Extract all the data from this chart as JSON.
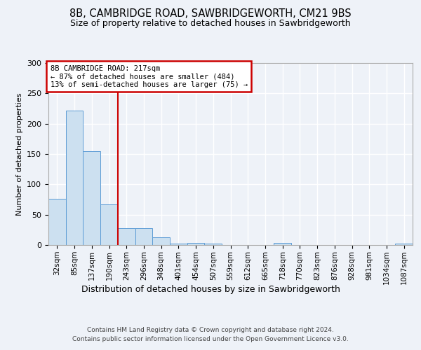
{
  "title1": "8B, CAMBRIDGE ROAD, SAWBRIDGEWORTH, CM21 9BS",
  "title2": "Size of property relative to detached houses in Sawbridgeworth",
  "xlabel": "Distribution of detached houses by size in Sawbridgeworth",
  "ylabel": "Number of detached properties",
  "categories": [
    "32sqm",
    "85sqm",
    "137sqm",
    "190sqm",
    "243sqm",
    "296sqm",
    "348sqm",
    "401sqm",
    "454sqm",
    "507sqm",
    "559sqm",
    "612sqm",
    "665sqm",
    "718sqm",
    "770sqm",
    "823sqm",
    "876sqm",
    "928sqm",
    "981sqm",
    "1034sqm",
    "1087sqm"
  ],
  "values": [
    76,
    221,
    155,
    67,
    28,
    28,
    13,
    2,
    4,
    2,
    0,
    0,
    0,
    3,
    0,
    0,
    0,
    0,
    0,
    0,
    2
  ],
  "bar_color": "#cce0f0",
  "bar_edge_color": "#5b9bd5",
  "annotation_text_line1": "8B CAMBRIDGE ROAD: 217sqm",
  "annotation_text_line2": "← 87% of detached houses are smaller (484)",
  "annotation_text_line3": "13% of semi-detached houses are larger (75) →",
  "annotation_box_color": "#ffffff",
  "annotation_box_edge": "#cc0000",
  "vline_color": "#cc0000",
  "vline_x": 3.5,
  "footer1": "Contains HM Land Registry data © Crown copyright and database right 2024.",
  "footer2": "Contains public sector information licensed under the Open Government Licence v3.0.",
  "ylim": [
    0,
    300
  ],
  "background_color": "#eef2f8",
  "grid_color": "#ffffff"
}
